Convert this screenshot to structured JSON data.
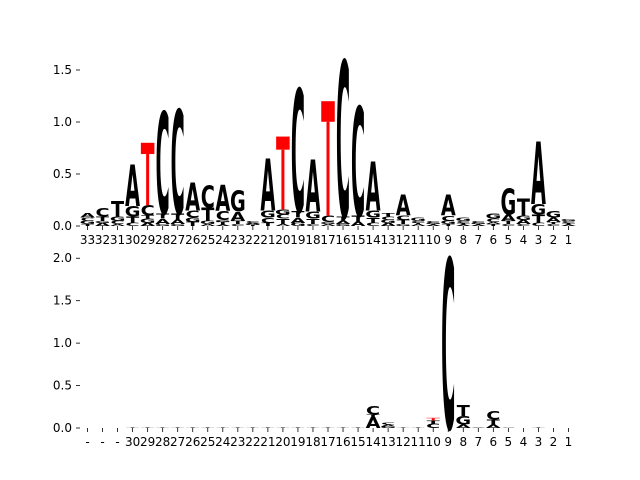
{
  "chart_data": [
    {
      "type": "sequence-logo",
      "ylim": [
        0,
        1.75
      ],
      "yticks": [
        "0.0",
        "0.5",
        "1.0",
        "1.5"
      ],
      "ytick_values": [
        0,
        0.5,
        1.0,
        1.5
      ],
      "xticks": [
        "33",
        "32",
        "31",
        "30",
        "29",
        "28",
        "27",
        "26",
        "25",
        "24",
        "23",
        "22",
        "21",
        "20",
        "19",
        "18",
        "17",
        "16",
        "15",
        "14",
        "13",
        "12",
        "11",
        "10",
        "9",
        "8",
        "7",
        "6",
        "5",
        "4",
        "3",
        "2",
        "1"
      ],
      "positions": [
        {
          "stack": [
            [
              "T",
              0.02
            ],
            [
              "G",
              0.03
            ],
            [
              "C",
              0.03
            ],
            [
              "A",
              0.04
            ]
          ]
        },
        {
          "stack": [
            [
              "A",
              0.03
            ],
            [
              "G",
              0.02
            ],
            [
              "T",
              0.04
            ],
            [
              "C",
              0.08
            ]
          ]
        },
        {
          "stack": [
            [
              "A",
              0.02
            ],
            [
              "C",
              0.03
            ],
            [
              "G",
              0.04
            ],
            [
              "T",
              0.15
            ]
          ]
        },
        {
          "stack": [
            [
              "C",
              0.03
            ],
            [
              "T",
              0.06
            ],
            [
              "G",
              0.1
            ],
            [
              "A",
              0.4
            ]
          ]
        },
        {
          "stack": [
            [
              "A",
              0.03
            ],
            [
              "G",
              0.04
            ],
            [
              "T",
              0.03
            ],
            [
              "C",
              0.1
            ],
            [
              "-",
              0.6
            ]
          ]
        },
        {
          "stack": [
            [
              "G",
              0.02
            ],
            [
              "A",
              0.05
            ],
            [
              "T",
              0.05
            ],
            [
              "C",
              0.98
            ]
          ]
        },
        {
          "stack": [
            [
              "G",
              0.02
            ],
            [
              "A",
              0.04
            ],
            [
              "T",
              0.06
            ],
            [
              "C",
              1.0
            ]
          ]
        },
        {
          "stack": [
            [
              "T",
              0.04
            ],
            [
              "G",
              0.04
            ],
            [
              "C",
              0.07
            ],
            [
              "A",
              0.27
            ]
          ]
        },
        {
          "stack": [
            [
              "A",
              0.02
            ],
            [
              "G",
              0.03
            ],
            [
              "T",
              0.13
            ],
            [
              "C",
              0.21
            ]
          ]
        },
        {
          "stack": [
            [
              "A",
              0.01
            ],
            [
              "T",
              0.03
            ],
            [
              "G",
              0.02
            ],
            [
              "C",
              0.09
            ],
            [
              "A",
              0.25
            ]
          ]
        },
        {
          "stack": [
            [
              "C",
              0.02
            ],
            [
              "T",
              0.03
            ],
            [
              "A",
              0.09
            ],
            [
              "G",
              0.2
            ]
          ]
        },
        {
          "stack": [
            [
              "T",
              0.01
            ],
            [
              "G",
              0.01
            ],
            [
              "A",
              0.01
            ],
            [
              "C",
              0.02
            ]
          ]
        },
        {
          "stack": [
            [
              "T",
              0.03
            ],
            [
              "C",
              0.05
            ],
            [
              "G",
              0.07
            ],
            [
              "A",
              0.5
            ]
          ]
        },
        {
          "stack": [
            [
              "A",
              0.02
            ],
            [
              "T",
              0.05
            ],
            [
              "C",
              0.04
            ],
            [
              "G",
              0.05
            ],
            [
              "-",
              0.7
            ]
          ]
        },
        {
          "stack": [
            [
              "G",
              0.03
            ],
            [
              "A",
              0.05
            ],
            [
              "T",
              0.06
            ],
            [
              "C",
              1.18
            ]
          ]
        },
        {
          "stack": [
            [
              "C",
              0.02
            ],
            [
              "T",
              0.05
            ],
            [
              "G",
              0.07
            ],
            [
              "A",
              0.5
            ]
          ]
        },
        {
          "stack": [
            [
              "A",
              0.02
            ],
            [
              "G",
              0.02
            ],
            [
              "C",
              0.06
            ],
            [
              "-",
              1.1
            ]
          ]
        },
        {
          "stack": [
            [
              "G",
              0.02
            ],
            [
              "A",
              0.03
            ],
            [
              "T",
              0.04
            ],
            [
              "C",
              1.5
            ]
          ]
        },
        {
          "stack": [
            [
              "A",
              0.04
            ],
            [
              "T",
              0.06
            ],
            [
              "C",
              1.05
            ]
          ]
        },
        {
          "stack": [
            [
              "C",
              0.03
            ],
            [
              "T",
              0.05
            ],
            [
              "G",
              0.07
            ],
            [
              "A",
              0.47
            ]
          ]
        },
        {
          "stack": [
            [
              "A",
              0.03
            ],
            [
              "G",
              0.03
            ],
            [
              "C",
              0.03
            ],
            [
              "T",
              0.03
            ]
          ]
        },
        {
          "stack": [
            [
              "G",
              0.02
            ],
            [
              "T",
              0.04
            ],
            [
              "C",
              0.04
            ],
            [
              "A",
              0.2
            ]
          ]
        },
        {
          "stack": [
            [
              "A",
              0.02
            ],
            [
              "T",
              0.01
            ],
            [
              "C",
              0.02
            ],
            [
              "G",
              0.03
            ]
          ]
        },
        {
          "stack": [
            [
              "A",
              0.01
            ],
            [
              "T",
              0.01
            ],
            [
              "G",
              0.01
            ],
            [
              "C",
              0.02
            ]
          ]
        },
        {
          "stack": [
            [
              "T",
              0.02
            ],
            [
              "G",
              0.03
            ],
            [
              "C",
              0.05
            ],
            [
              "A",
              0.2
            ]
          ]
        },
        {
          "stack": [
            [
              "A",
              0.01
            ],
            [
              "T",
              0.02
            ],
            [
              "C",
              0.02
            ],
            [
              "G",
              0.03
            ]
          ]
        },
        {
          "stack": [
            [
              "A",
              0.01
            ],
            [
              "T",
              0.01
            ],
            [
              "G",
              0.01
            ],
            [
              "C",
              0.02
            ]
          ]
        },
        {
          "stack": [
            [
              "T",
              0.02
            ],
            [
              "A",
              0.02
            ],
            [
              "C",
              0.03
            ],
            [
              "G",
              0.05
            ]
          ]
        },
        {
          "stack": [
            [
              "C",
              0.02
            ],
            [
              "T",
              0.03
            ],
            [
              "A",
              0.06
            ],
            [
              "G",
              0.25
            ]
          ]
        },
        {
          "stack": [
            [
              "C",
              0.02
            ],
            [
              "A",
              0.04
            ],
            [
              "G",
              0.04
            ],
            [
              "T",
              0.16
            ]
          ]
        },
        {
          "stack": [
            [
              "C",
              0.03
            ],
            [
              "T",
              0.08
            ],
            [
              "G",
              0.1
            ],
            [
              "A",
              0.6
            ]
          ]
        },
        {
          "stack": [
            [
              "C",
              0.02
            ],
            [
              "T",
              0.02
            ],
            [
              "A",
              0.04
            ],
            [
              "G",
              0.06
            ]
          ]
        },
        {
          "stack": [
            [
              "A",
              0.01
            ],
            [
              "T",
              0.02
            ],
            [
              "C",
              0.02
            ],
            [
              "G",
              0.02
            ]
          ]
        }
      ]
    },
    {
      "type": "sequence-logo",
      "ylim": [
        0,
        2.05
      ],
      "yticks": [
        "0.0",
        "0.5",
        "1.0",
        "1.5",
        "2.0"
      ],
      "ytick_values": [
        0,
        0.5,
        1.0,
        1.5,
        2.0
      ],
      "xticks": [
        "-",
        "-",
        "-",
        "30",
        "29",
        "28",
        "27",
        "26",
        "25",
        "24",
        "23",
        "22",
        "21",
        "20",
        "19",
        "18",
        "17",
        "16",
        "15",
        "14",
        "13",
        "12",
        "11",
        "10",
        "9",
        "8",
        "7",
        "6",
        "5",
        "4",
        "3",
        "2",
        "1"
      ],
      "positions": [
        {
          "stack": []
        },
        {
          "stack": []
        },
        {
          "stack": []
        },
        {
          "stack": [
            [
              "T",
              0.01
            ]
          ]
        },
        {
          "stack": [
            [
              "T",
              0.005
            ]
          ]
        },
        {
          "stack": [
            [
              "T",
              0.005
            ]
          ]
        },
        {
          "stack": [
            [
              "T",
              0.01
            ]
          ]
        },
        {
          "stack": [
            [
              "T",
              0.005
            ]
          ]
        },
        {
          "stack": [
            [
              "T",
              0.005
            ]
          ]
        },
        {
          "stack": [
            [
              "T",
              0.01
            ]
          ]
        },
        {
          "stack": [
            [
              "T",
              0.01
            ]
          ]
        },
        {
          "stack": [
            [
              "T",
              0.005
            ]
          ]
        },
        {
          "stack": [
            [
              "T",
              0.005
            ]
          ]
        },
        {
          "stack": [
            [
              "T",
              0.005
            ]
          ]
        },
        {
          "stack": [
            [
              "T",
              0.005
            ]
          ]
        },
        {
          "stack": [
            [
              "T",
              0.01
            ]
          ]
        },
        {
          "stack": [
            [
              "T",
              0.005
            ]
          ]
        },
        {
          "stack": [
            [
              "T",
              0.01
            ]
          ]
        },
        {
          "stack": [
            [
              "T",
              0.005
            ]
          ]
        },
        {
          "stack": [
            [
              "A",
              0.13
            ],
            [
              "T",
              0.03
            ],
            [
              "C",
              0.1
            ]
          ]
        },
        {
          "stack": [
            [
              "G",
              0.02
            ],
            [
              "A",
              0.02
            ],
            [
              "C",
              0.02
            ]
          ]
        },
        {
          "stack": [
            [
              "T",
              0.005
            ]
          ]
        },
        {
          "stack": [
            [
              "T",
              0.005
            ]
          ]
        },
        {
          "stack": [
            [
              "C",
              0.05
            ],
            [
              "T",
              0.04
            ],
            [
              "-",
              0.03
            ]
          ]
        },
        {
          "stack": [
            [
              "C",
              2.0
            ]
          ]
        },
        {
          "stack": [
            [
              "A",
              0.04
            ],
            [
              "G",
              0.1
            ],
            [
              "T",
              0.13
            ]
          ]
        },
        {
          "stack": [
            [
              "A",
              0.01
            ]
          ]
        },
        {
          "stack": [
            [
              "A",
              0.04
            ],
            [
              "T",
              0.06
            ],
            [
              "C",
              0.1
            ]
          ]
        },
        {
          "stack": [
            [
              "C",
              0.01
            ]
          ]
        },
        {
          "stack": []
        },
        {
          "stack": [
            [
              "T",
              0.01
            ]
          ]
        },
        {
          "stack": []
        },
        {
          "stack": []
        }
      ]
    }
  ]
}
